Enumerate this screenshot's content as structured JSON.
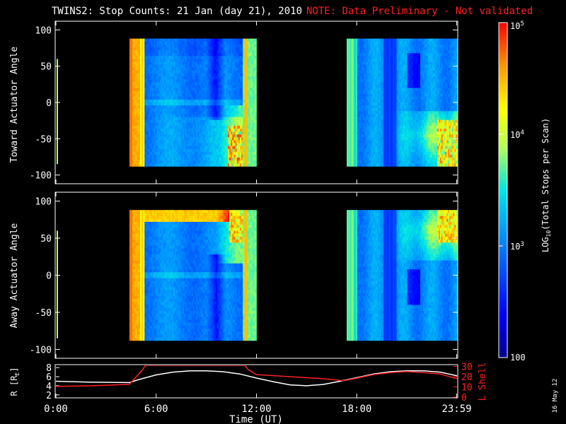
{
  "title": {
    "main": "TWINS2: Stop Counts: 21 Jan (day  21), 2010",
    "note": "NOTE: Data Preliminary - Not validated",
    "note_color": "#ff2020"
  },
  "side_note": "16 May 12",
  "chart_data": [
    {
      "type": "heatmap",
      "name": "toward",
      "ylabel": "Toward Actuator Angle",
      "ylim": [
        -112,
        112
      ],
      "yticks": [
        100,
        50,
        0,
        -50,
        -100
      ],
      "xlim": [
        0,
        24
      ],
      "data_blocks": [
        {
          "start_h": 4.4,
          "end_h": 12.0,
          "y_range": [
            -88,
            88
          ]
        },
        {
          "start_h": 17.4,
          "end_h": 24.0,
          "y_range": [
            -88,
            88
          ]
        }
      ]
    },
    {
      "type": "heatmap",
      "name": "away",
      "ylabel": "Away Actuator Angle",
      "ylim": [
        -112,
        112
      ],
      "yticks": [
        100,
        50,
        0,
        -50,
        -100
      ],
      "xlim": [
        0,
        24
      ],
      "data_blocks": [
        {
          "start_h": 4.4,
          "end_h": 12.0,
          "y_range": [
            -88,
            88
          ]
        },
        {
          "start_h": 17.4,
          "end_h": 24.0,
          "y_range": [
            -88,
            88
          ]
        }
      ]
    },
    {
      "type": "line",
      "name": "orbit",
      "ylabel_left": "R [R",
      "ylabel_left_sub": "E",
      "ylabel_left_end": "]",
      "ylabel_right": "L Shell",
      "ylim_left": [
        1.5,
        8.5
      ],
      "yticks_left": [
        8,
        6,
        4,
        2
      ],
      "ylim_right": [
        0,
        31
      ],
      "yticks_right": [
        30,
        20,
        10,
        0
      ],
      "xlabel": "Time (UT)",
      "xtick_labels": [
        "0:00",
        "6:00",
        "12:00",
        "18:00",
        "23:59"
      ],
      "xtick_values": [
        0,
        6,
        12,
        18,
        23.98
      ],
      "series": [
        {
          "name": "R",
          "color": "#ffffff",
          "x": [
            0,
            2,
            4.4,
            5,
            6,
            7,
            8,
            9,
            10,
            11,
            12,
            13,
            14,
            15,
            16,
            17,
            18,
            19,
            20,
            21,
            22,
            23,
            24
          ],
          "y": [
            5.0,
            4.8,
            4.7,
            5.4,
            6.4,
            7.0,
            7.3,
            7.3,
            7.1,
            6.6,
            5.7,
            4.9,
            4.2,
            4.0,
            4.3,
            5.0,
            5.8,
            6.6,
            7.1,
            7.3,
            7.3,
            7.0,
            6.2
          ]
        },
        {
          "name": "L Shell",
          "color": "#ff2020",
          "x": [
            0,
            2,
            4.4,
            5.2,
            5.35,
            11.3,
            11.5,
            12,
            14,
            16,
            17.2,
            18,
            19,
            20,
            21,
            22,
            23,
            24
          ],
          "y": [
            10.5,
            11,
            12.5,
            27,
            31,
            31,
            27,
            22,
            20,
            18,
            16,
            18.5,
            22,
            24,
            25,
            24,
            22.5,
            18
          ]
        }
      ]
    }
  ],
  "colorbar": {
    "label": "LOG",
    "label_sub": "10",
    "label_end": "(Total Stops per Scan)",
    "scale": "log",
    "range": [
      100,
      100000
    ],
    "ticks": [
      {
        "mant": "10",
        "exp": "5",
        "value": 100000
      },
      {
        "mant": "10",
        "exp": "4",
        "value": 10000
      },
      {
        "mant": "10",
        "exp": "3",
        "value": 1000
      },
      {
        "mant": "100",
        "exp": "",
        "value": 100
      }
    ]
  }
}
